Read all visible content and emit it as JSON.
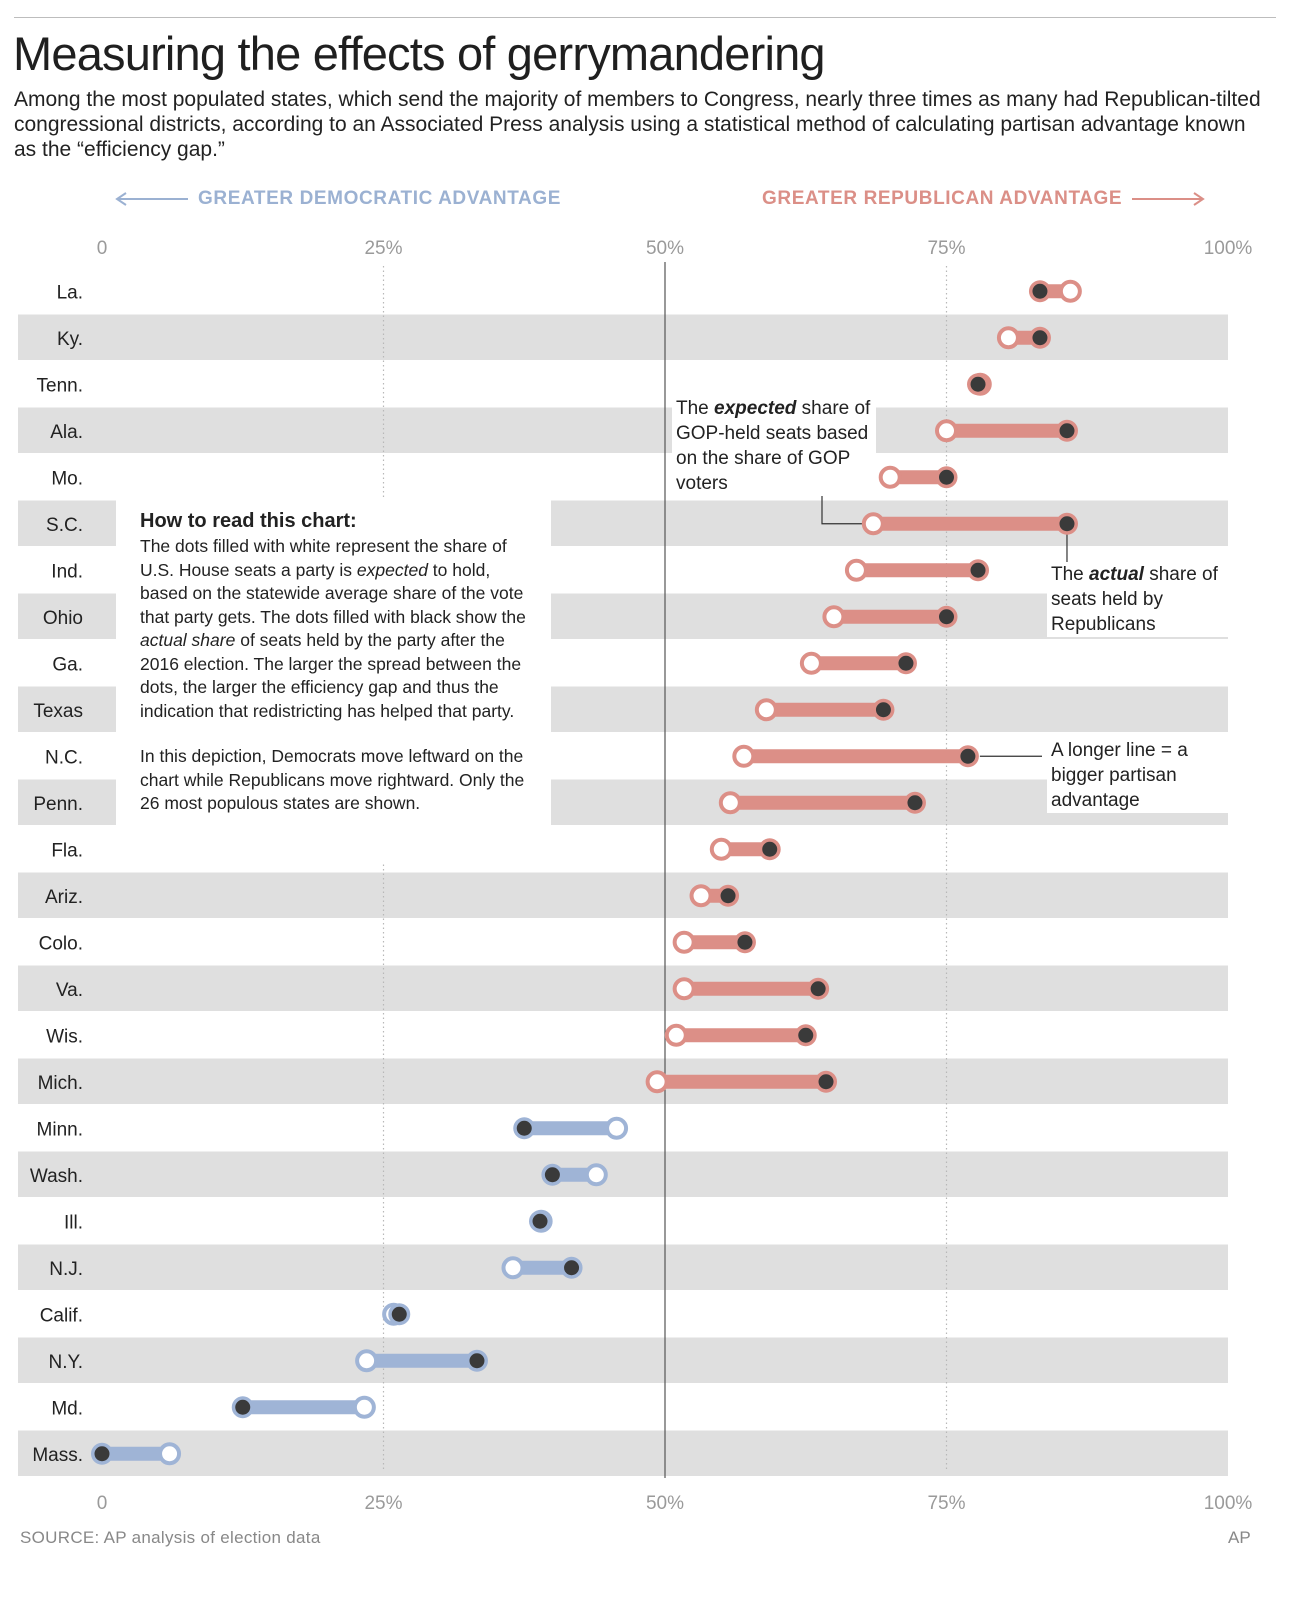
{
  "title": "Measuring the effects of gerrymandering",
  "subtitle": "Among the most populated states, which send the majority of members to Congress, nearly three times as many had Republican-tilted congressional districts, according to an Associated Press analysis using a statistical method of calculating partisan advantage known as the “efficiency gap.”",
  "direction": {
    "democratic": "GREATER DEMOCRATIC ADVANTAGE",
    "republican": "GREATER REPUBLICAN ADVANTAGE"
  },
  "howto": {
    "heading": "How to read this chart:",
    "p1": [
      {
        "t": "The dots filled with white represent the share of U.S. House seats a party is "
      },
      {
        "t": "expected",
        "i": true
      },
      {
        "t": " to hold, based on the statewide average share of the vote that party gets. The dots filled with black show the "
      },
      {
        "t": "actual share",
        "i": true
      },
      {
        "t": " of seats held by the party after the 2016 election. The larger the spread between the dots, the larger the efficiency gap and thus the indication that redistricting has helped that party."
      }
    ],
    "p2": "In this depiction, Democrats move leftward on the chart while Republicans move rightward. Only the 26 most populous states are shown."
  },
  "annotations": {
    "expected": [
      {
        "t": "The "
      },
      {
        "t": "expected",
        "b": true
      },
      {
        "t": " share of GOP-held seats based on the share of GOP voters"
      }
    ],
    "actual": [
      {
        "t": "The "
      },
      {
        "t": "actual",
        "b": true
      },
      {
        "t": " share of seats held by Republicans"
      }
    ],
    "longer": "A longer line = a bigger partisan advantage"
  },
  "source": "SOURCE: AP analysis of election data",
  "credit": "AP",
  "colors": {
    "republican": "#dc8f87",
    "democratic": "#9fb4d6",
    "actual_dot": "#3a3a3a",
    "band": "#dfdfdf",
    "grid": "#b8b8b8",
    "midline": "#555555"
  },
  "chart_data": {
    "type": "dumbbell",
    "xlim": [
      0,
      100
    ],
    "xticks": [
      {
        "v": 0,
        "label": "0"
      },
      {
        "v": 25,
        "label": "25%"
      },
      {
        "v": 50,
        "label": "50%"
      },
      {
        "v": 75,
        "label": "75%"
      },
      {
        "v": 100,
        "label": "100%"
      }
    ],
    "series": [
      {
        "name": "Expected share (white dot)",
        "key": "expected"
      },
      {
        "name": "Actual share after 2016 election (black dot)",
        "key": "actual"
      }
    ],
    "rows": [
      {
        "state": "La.",
        "expected": 86.0,
        "actual": 83.3,
        "party": "R"
      },
      {
        "state": "Ky.",
        "expected": 80.5,
        "actual": 83.3,
        "party": "R"
      },
      {
        "state": "Tenn.",
        "expected": 78.0,
        "actual": 77.8,
        "party": "R"
      },
      {
        "state": "Ala.",
        "expected": 75.0,
        "actual": 85.7,
        "party": "R"
      },
      {
        "state": "Mo.",
        "expected": 70.0,
        "actual": 75.0,
        "party": "R"
      },
      {
        "state": "S.C.",
        "expected": 68.5,
        "actual": 85.7,
        "party": "R"
      },
      {
        "state": "Ind.",
        "expected": 67.0,
        "actual": 77.8,
        "party": "R"
      },
      {
        "state": "Ohio",
        "expected": 65.0,
        "actual": 75.0,
        "party": "R"
      },
      {
        "state": "Ga.",
        "expected": 63.0,
        "actual": 71.4,
        "party": "R"
      },
      {
        "state": "Texas",
        "expected": 59.0,
        "actual": 69.4,
        "party": "R"
      },
      {
        "state": "N.C.",
        "expected": 57.0,
        "actual": 76.9,
        "party": "R"
      },
      {
        "state": "Penn.",
        "expected": 55.8,
        "actual": 72.2,
        "party": "R"
      },
      {
        "state": "Fla.",
        "expected": 55.0,
        "actual": 59.3,
        "party": "R"
      },
      {
        "state": "Ariz.",
        "expected": 53.2,
        "actual": 55.6,
        "party": "R"
      },
      {
        "state": "Colo.",
        "expected": 51.7,
        "actual": 57.1,
        "party": "R"
      },
      {
        "state": "Va.",
        "expected": 51.7,
        "actual": 63.6,
        "party": "R"
      },
      {
        "state": "Wis.",
        "expected": 51.0,
        "actual": 62.5,
        "party": "R"
      },
      {
        "state": "Mich.",
        "expected": 49.3,
        "actual": 64.3,
        "party": "R"
      },
      {
        "state": "Minn.",
        "expected": 45.7,
        "actual": 37.5,
        "party": "D"
      },
      {
        "state": "Wash.",
        "expected": 43.9,
        "actual": 40.0,
        "party": "D"
      },
      {
        "state": "Ill.",
        "expected": 39.0,
        "actual": 38.9,
        "party": "D"
      },
      {
        "state": "N.J.",
        "expected": 36.5,
        "actual": 41.7,
        "party": "D"
      },
      {
        "state": "Calif.",
        "expected": 25.9,
        "actual": 26.4,
        "party": "D"
      },
      {
        "state": "N.Y.",
        "expected": 23.5,
        "actual": 33.3,
        "party": "D"
      },
      {
        "state": "Md.",
        "expected": 23.3,
        "actual": 12.5,
        "party": "D"
      },
      {
        "state": "Mass.",
        "expected": 6.0,
        "actual": 0.0,
        "party": "D"
      }
    ]
  }
}
